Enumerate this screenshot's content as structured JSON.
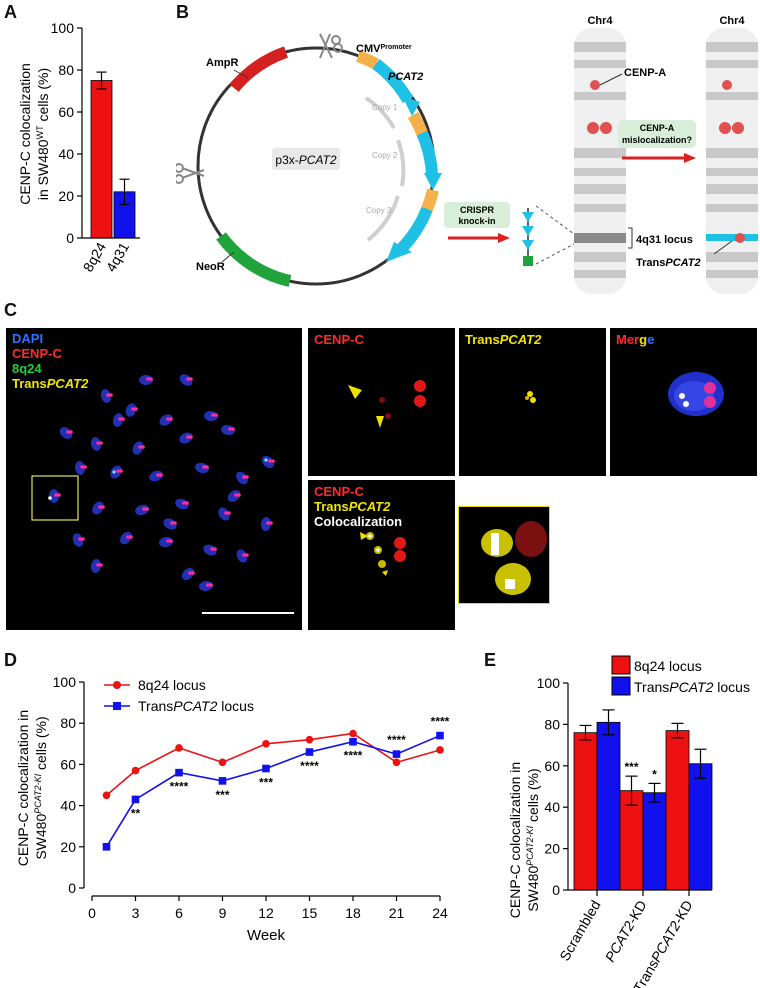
{
  "panels": {
    "a": "A",
    "b": "B",
    "c": "C",
    "d": "D",
    "e": "E"
  },
  "panelA": {
    "ylabel_line1": "CENP-C colocalization",
    "ylabel_line2_prefix": "in SW480",
    "ylabel_sup": "WT",
    "ylabel_line2_suffix": " cells (%)",
    "colors": {
      "8q24": "#ee1111",
      "4q31": "#1111ee"
    }
  },
  "panelB": {
    "plasmid_name_prefix": "p3x-",
    "plasmid_name_italic": "PCAT2",
    "ampr": "AmpR",
    "neor": "NeoR",
    "cmv": "CMV",
    "cmv_sup": "Promoter",
    "pcat2": "PCAT2",
    "copy1": "Copy 1",
    "copy2": "Copy 2",
    "copy3": "Copy 3",
    "crispr_line1": "CRISPR",
    "crispr_line2": "knock-in",
    "chr_left": "Chr4",
    "chr_right": "Chr4",
    "cenpa": "CENP-A",
    "locus": "4q31 locus",
    "trans_prefix": "Trans",
    "trans_italic": "PCAT2",
    "mislocal_line1": "CENP-A",
    "mislocal_line2": "mislocalization?"
  },
  "panelC": {
    "legend": {
      "dapi": "DAPI",
      "cenpc": "CENP-C",
      "q24": "8q24",
      "trans_prefix": "Trans",
      "trans_italic": "PCAT2"
    },
    "inset_cenpc": "CENP-C",
    "inset_trans_prefix": "Trans",
    "inset_trans_italic": "PCAT2",
    "merge": {
      "m1": "Mer",
      "m2": "g",
      "m3": "e"
    },
    "coloc": {
      "cenpc": "CENP-C",
      "trans_prefix": "Trans",
      "trans_italic": "PCAT2",
      "coloc": "Colocalization"
    }
  },
  "panelD": {
    "ylabel_line1": "CENP-C colocalization in",
    "ylabel_line2_prefix": "SW480",
    "ylabel_sup": "PCAT2-KI",
    "ylabel_line2_suffix": " cells (%)",
    "legend_8q24": "8q24 locus",
    "legend_trans_prefix": "Trans",
    "legend_trans_italic": "PCAT2",
    "legend_trans_suffix": " locus",
    "colors": {
      "8q24": "#ee1111",
      "trans": "#1111ee"
    }
  },
  "panelE": {
    "ylabel_line1": "CENP-C colocalization in",
    "ylabel_line2_prefix": "SW480",
    "ylabel_sup": "PCAT2-KI",
    "ylabel_line2_suffix": " cells (%)",
    "legend_8q24": "8q24 locus",
    "legend_trans_prefix": "Trans",
    "legend_trans_italic": "PCAT2",
    "legend_trans_suffix": " locus",
    "colors": {
      "8q24": "#ee1111",
      "trans": "#1111ee"
    }
  },
  "chart_data": [
    {
      "panel": "A",
      "type": "bar",
      "categories": [
        "8q24",
        "4q31"
      ],
      "values": [
        75,
        22
      ],
      "errors": [
        4,
        6
      ],
      "ylim": [
        0,
        100
      ],
      "yticks": [
        0,
        20,
        40,
        60,
        80,
        100
      ],
      "ylabel": "CENP-C colocalization in SW480WT cells (%)"
    },
    {
      "panel": "D",
      "type": "line",
      "xlabel": "Week",
      "ylabel": "CENP-C colocalization in SW480PCAT2-KI cells (%)",
      "xlim": [
        0,
        24
      ],
      "ylim": [
        0,
        100
      ],
      "xticks": [
        0,
        3,
        6,
        9,
        12,
        15,
        18,
        21,
        24
      ],
      "yticks": [
        0,
        20,
        40,
        60,
        80,
        100
      ],
      "series": [
        {
          "name": "8q24 locus",
          "x": [
            1,
            3,
            6,
            9,
            12,
            15,
            18,
            21,
            24
          ],
          "values": [
            45,
            57,
            68,
            61,
            70,
            72,
            75,
            61,
            67
          ]
        },
        {
          "name": "TransPCAT2 locus",
          "x": [
            1,
            3,
            6,
            9,
            12,
            15,
            18,
            21,
            24
          ],
          "values": [
            20,
            43,
            56,
            52,
            58,
            66,
            71,
            65,
            74
          ]
        }
      ],
      "annotations": [
        {
          "x": 3,
          "text": "**"
        },
        {
          "x": 6,
          "text": "****"
        },
        {
          "x": 9,
          "text": "***"
        },
        {
          "x": 12,
          "text": "***"
        },
        {
          "x": 15,
          "text": "****"
        },
        {
          "x": 18,
          "text": "****"
        },
        {
          "x": 21,
          "text": "****"
        },
        {
          "x": 24,
          "text": "****"
        }
      ]
    },
    {
      "panel": "E",
      "type": "bar",
      "categories": [
        "Scrambled",
        "PCAT2-KD",
        "TransPCAT2-KD"
      ],
      "ylim": [
        0,
        100
      ],
      "yticks": [
        0,
        20,
        40,
        60,
        80,
        100
      ],
      "ylabel": "CENP-C colocalization in SW480PCAT2-KI cells (%)",
      "series": [
        {
          "name": "8q24 locus",
          "values": [
            76,
            48,
            77
          ],
          "errors": [
            3.5,
            7,
            3.5
          ],
          "sig": [
            "",
            "***",
            ""
          ]
        },
        {
          "name": "TransPCAT2 locus",
          "values": [
            81,
            47,
            61
          ],
          "errors": [
            6,
            4.5,
            7
          ],
          "sig": [
            "",
            "*",
            ""
          ]
        }
      ]
    }
  ]
}
